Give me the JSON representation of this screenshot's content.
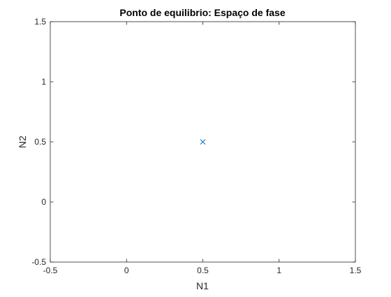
{
  "chart_data": {
    "type": "scatter",
    "title": "Ponto de equilibrio: Espaço de fase",
    "xlabel": "N1",
    "ylabel": "N2",
    "xlim": [
      -0.5,
      1.5
    ],
    "ylim": [
      -0.5,
      1.5
    ],
    "xticks": [
      -0.5,
      0,
      0.5,
      1,
      1.5
    ],
    "xtick_labels": [
      "-0.5",
      "0",
      "0.5",
      "1",
      "1.5"
    ],
    "yticks": [
      -0.5,
      0,
      0.5,
      1,
      1.5
    ],
    "ytick_labels": [
      "-0.5",
      "0",
      "0.5",
      "1",
      "1.5"
    ],
    "grid": false,
    "box": true,
    "series": [
      {
        "marker": "x",
        "color": "#0072BD",
        "x": [
          0.5
        ],
        "y": [
          0.5
        ]
      }
    ]
  }
}
